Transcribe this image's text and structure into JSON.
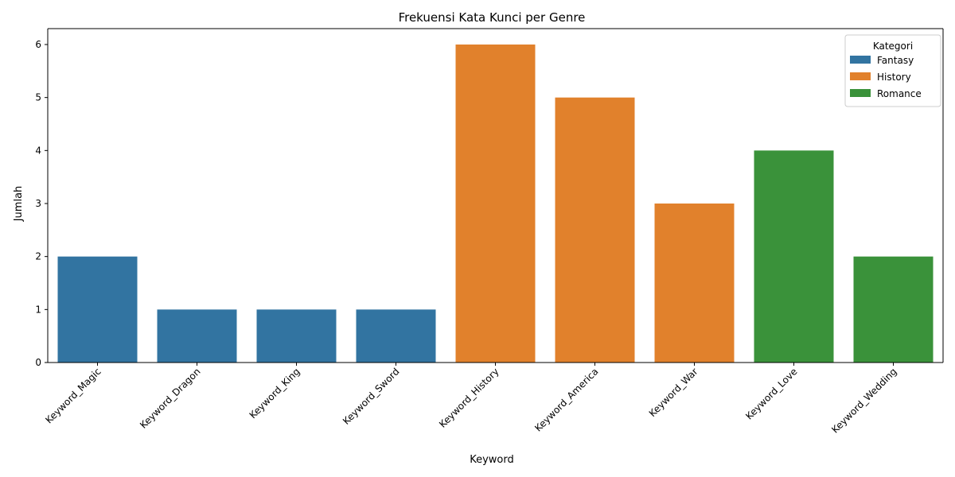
{
  "chart_data": {
    "type": "bar",
    "title": "Frekuensi Kata Kunci per Genre",
    "xlabel": "Keyword",
    "ylabel": "Jumlah",
    "ylim": [
      0,
      6.3
    ],
    "yticks": [
      0,
      1,
      2,
      3,
      4,
      5,
      6
    ],
    "categories": [
      "Keyword_Magic",
      "Keyword_Dragon",
      "Keyword_King",
      "Keyword_Sword",
      "Keyword_History",
      "Keyword_America",
      "Keyword_War",
      "Keyword_Love",
      "Keyword_Wedding"
    ],
    "values": [
      2,
      1,
      1,
      1,
      6,
      5,
      3,
      4,
      2
    ],
    "bar_groups": [
      "Fantasy",
      "Fantasy",
      "Fantasy",
      "Fantasy",
      "History",
      "History",
      "History",
      "Romance",
      "Romance"
    ],
    "legend": {
      "title": "Kategori",
      "placement": "top-right",
      "entries": [
        {
          "name": "Fantasy",
          "color": "#3274a1"
        },
        {
          "name": "History",
          "color": "#e1812c"
        },
        {
          "name": "Romance",
          "color": "#3a923a"
        }
      ]
    },
    "grid": false,
    "xtick_rotation": 45
  }
}
